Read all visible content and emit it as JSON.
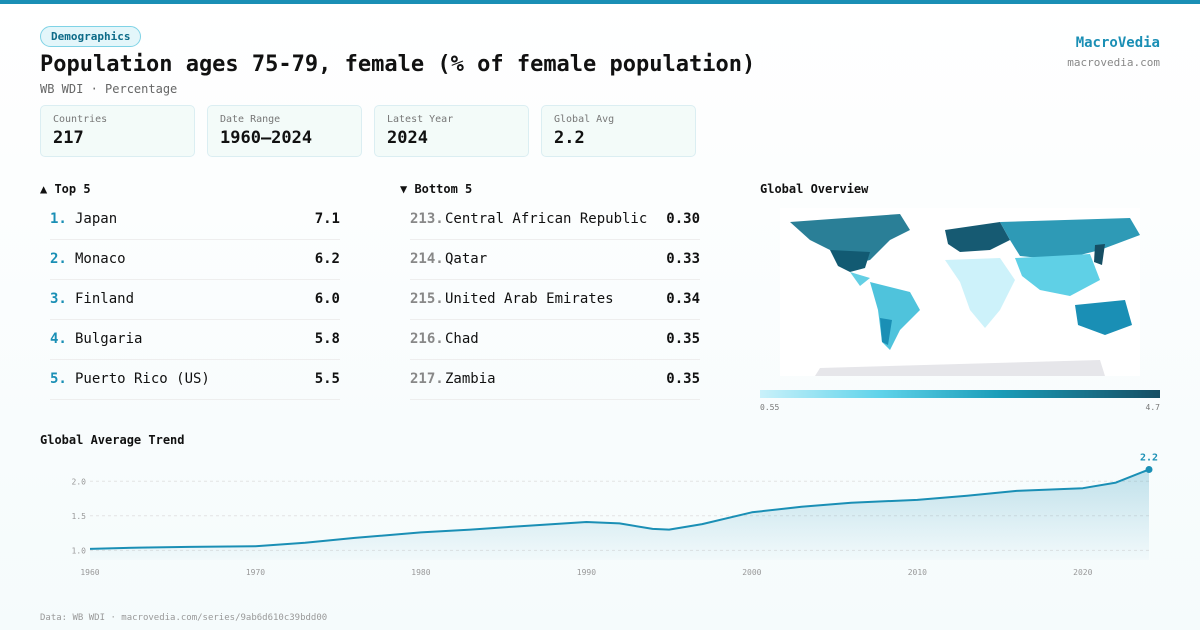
{
  "badge": "Demographics",
  "title": "Population ages 75-79, female (% of female population)",
  "subtitle": "WB WDI · Percentage",
  "brand": {
    "name": "MacroVedia",
    "url": "macrovedia.com"
  },
  "stats": [
    {
      "label": "Countries",
      "value": "217"
    },
    {
      "label": "Date Range",
      "value": "1960–2024"
    },
    {
      "label": "Latest Year",
      "value": "2024"
    },
    {
      "label": "Global Avg",
      "value": "2.2"
    }
  ],
  "top": {
    "heading": "▲ Top 5",
    "rows": [
      {
        "rank": "1.",
        "name": "Japan",
        "value": "7.1"
      },
      {
        "rank": "2.",
        "name": "Monaco",
        "value": "6.2"
      },
      {
        "rank": "3.",
        "name": "Finland",
        "value": "6.0"
      },
      {
        "rank": "4.",
        "name": "Bulgaria",
        "value": "5.8"
      },
      {
        "rank": "5.",
        "name": "Puerto Rico (US)",
        "value": "5.5"
      }
    ]
  },
  "bottom": {
    "heading": "▼ Bottom 5",
    "rows": [
      {
        "rank": "213.",
        "name": "Central African Republic",
        "value": "0.30"
      },
      {
        "rank": "214.",
        "name": "Qatar",
        "value": "0.33"
      },
      {
        "rank": "215.",
        "name": "United Arab Emirates",
        "value": "0.34"
      },
      {
        "rank": "216.",
        "name": "Chad",
        "value": "0.35"
      },
      {
        "rank": "217.",
        "name": "Zambia",
        "value": "0.35"
      }
    ]
  },
  "map": {
    "title": "Global Overview",
    "legend_min": "0.55",
    "legend_max": "4.7"
  },
  "chart_data": {
    "type": "line",
    "title": "Global Average Trend",
    "x": [
      1960,
      1963,
      1966,
      1970,
      1973,
      1976,
      1980,
      1983,
      1986,
      1990,
      1992,
      1994,
      1995,
      1997,
      2000,
      2003,
      2006,
      2010,
      2013,
      2016,
      2020,
      2022,
      2024
    ],
    "values": [
      1.02,
      1.04,
      1.05,
      1.06,
      1.11,
      1.18,
      1.26,
      1.3,
      1.35,
      1.41,
      1.39,
      1.31,
      1.3,
      1.38,
      1.55,
      1.63,
      1.69,
      1.73,
      1.79,
      1.86,
      1.9,
      1.98,
      2.17
    ],
    "color": "#1a8fb5",
    "annotation": "2.2",
    "xlim": [
      1960,
      2024
    ],
    "xticks": [
      1960,
      1970,
      1980,
      1990,
      2000,
      2010,
      2020
    ],
    "ylim": [
      0.86,
      2.38
    ],
    "yticks": [
      {
        "value": 1,
        "label": "1.0"
      },
      {
        "value": 1.5,
        "label": "1.5"
      },
      {
        "value": 2,
        "label": "2.0"
      }
    ],
    "grid": true
  },
  "footer": "Data: WB WDI · macrovedia.com/series/9ab6d610c39bdd00"
}
